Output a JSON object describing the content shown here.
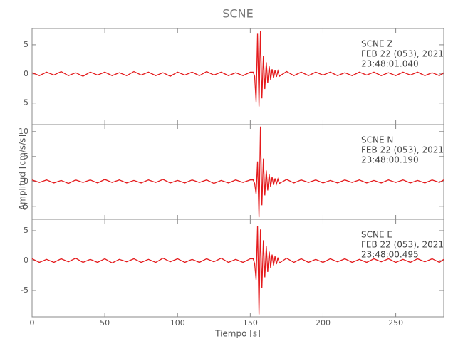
{
  "chart_data": {
    "type": "line",
    "title": "SCNE",
    "xlabel": "Tiempo [s]",
    "ylabel": "Amplitud [cm/s/s]",
    "xlim": [
      0,
      283
    ],
    "xticks": [
      0,
      50,
      100,
      150,
      200,
      250
    ],
    "x": [
      0,
      5,
      10,
      15,
      20,
      25,
      30,
      35,
      40,
      45,
      50,
      55,
      60,
      65,
      70,
      75,
      80,
      85,
      90,
      95,
      100,
      105,
      110,
      115,
      120,
      125,
      130,
      135,
      140,
      145,
      150,
      152,
      153,
      154,
      155,
      156,
      157,
      158,
      159,
      160,
      161,
      162,
      163,
      164,
      165,
      166,
      167,
      168,
      169,
      170,
      175,
      180,
      185,
      190,
      195,
      200,
      205,
      210,
      215,
      220,
      225,
      230,
      235,
      240,
      245,
      250,
      255,
      260,
      265,
      270,
      275,
      280,
      283
    ],
    "panels": [
      {
        "color": "#e41a1c",
        "ylim": [
          -8.7,
          7.8
        ],
        "yticks": [
          -5,
          0,
          5
        ],
        "annotation": [
          "SCNE   Z",
          "FEB 22 (053), 2021",
          "23:48:01.040"
        ],
        "values": [
          0.2,
          -0.3,
          0.3,
          -0.2,
          0.4,
          -0.3,
          0.2,
          -0.4,
          0.3,
          -0.2,
          0.3,
          -0.3,
          0.2,
          -0.3,
          0.4,
          -0.2,
          0.3,
          -0.3,
          0.2,
          -0.4,
          0.3,
          -0.2,
          0.3,
          -0.3,
          0.4,
          -0.2,
          0.3,
          -0.3,
          0.2,
          -0.3,
          0.3,
          0.3,
          -0.4,
          -4.8,
          6.9,
          -5.6,
          7.4,
          -4.2,
          3.1,
          -2.6,
          2.0,
          -1.6,
          1.3,
          -1.0,
          0.8,
          -0.7,
          0.6,
          -0.5,
          0.5,
          -0.4,
          0.4,
          -0.3,
          0.3,
          -0.3,
          0.3,
          -0.2,
          0.3,
          -0.3,
          0.2,
          -0.3,
          0.3,
          -0.2,
          0.3,
          -0.3,
          0.2,
          -0.3,
          0.3,
          -0.2,
          0.3,
          -0.3,
          0.2,
          -0.3,
          0.2
        ]
      },
      {
        "color": "#e41a1c",
        "ylim": [
          -7.6,
          11.4
        ],
        "yticks": [
          -5,
          0,
          5,
          10
        ],
        "annotation": [
          "SCNE   N",
          "FEB 22 (053), 2021",
          "23:48:00.190"
        ],
        "values": [
          0.3,
          -0.2,
          0.3,
          -0.3,
          0.2,
          -0.4,
          0.3,
          -0.2,
          0.3,
          -0.3,
          0.4,
          -0.2,
          0.3,
          -0.3,
          0.2,
          -0.3,
          0.3,
          -0.2,
          0.4,
          -0.3,
          0.2,
          -0.3,
          0.3,
          -0.2,
          0.3,
          -0.4,
          0.2,
          -0.3,
          0.3,
          -0.2,
          0.3,
          0.3,
          -0.4,
          -2.5,
          4.0,
          -7.2,
          11.0,
          -4.8,
          4.6,
          -2.8,
          2.2,
          -1.8,
          1.4,
          -1.1,
          0.9,
          -0.7,
          0.6,
          -0.5,
          0.5,
          -0.4,
          0.4,
          -0.3,
          0.3,
          -0.2,
          0.3,
          -0.3,
          0.2,
          -0.3,
          0.3,
          -0.2,
          0.3,
          -0.3,
          0.2,
          -0.3,
          0.3,
          -0.2,
          0.3,
          -0.3,
          0.2,
          -0.3,
          0.3,
          -0.2,
          0.3
        ]
      },
      {
        "color": "#e41a1c",
        "ylim": [
          -9.4,
          6.9
        ],
        "yticks": [
          -5,
          0,
          5
        ],
        "annotation": [
          "SCNE   E",
          "FEB 22 (053), 2021",
          "23:48:00.495"
        ],
        "values": [
          0.3,
          -0.3,
          0.2,
          -0.3,
          0.3,
          -0.2,
          0.4,
          -0.3,
          0.2,
          -0.3,
          0.3,
          -0.4,
          0.2,
          -0.2,
          0.3,
          -0.3,
          0.2,
          -0.3,
          0.4,
          -0.2,
          0.3,
          -0.3,
          0.2,
          -0.3,
          0.3,
          -0.2,
          0.4,
          -0.3,
          0.2,
          -0.3,
          0.3,
          0.3,
          -0.5,
          -3.2,
          5.8,
          -9.0,
          5.2,
          -4.6,
          3.4,
          -2.8,
          2.4,
          -1.9,
          1.5,
          -1.2,
          1.0,
          -0.8,
          0.7,
          -0.6,
          0.5,
          -0.4,
          0.4,
          -0.3,
          0.3,
          -0.3,
          0.2,
          -0.3,
          0.3,
          -0.2,
          0.3,
          -0.3,
          0.2,
          -0.3,
          0.3,
          -0.2,
          0.3,
          -0.3,
          0.2,
          -0.3,
          0.3,
          -0.2,
          0.3,
          -0.3,
          0.2
        ]
      }
    ]
  }
}
